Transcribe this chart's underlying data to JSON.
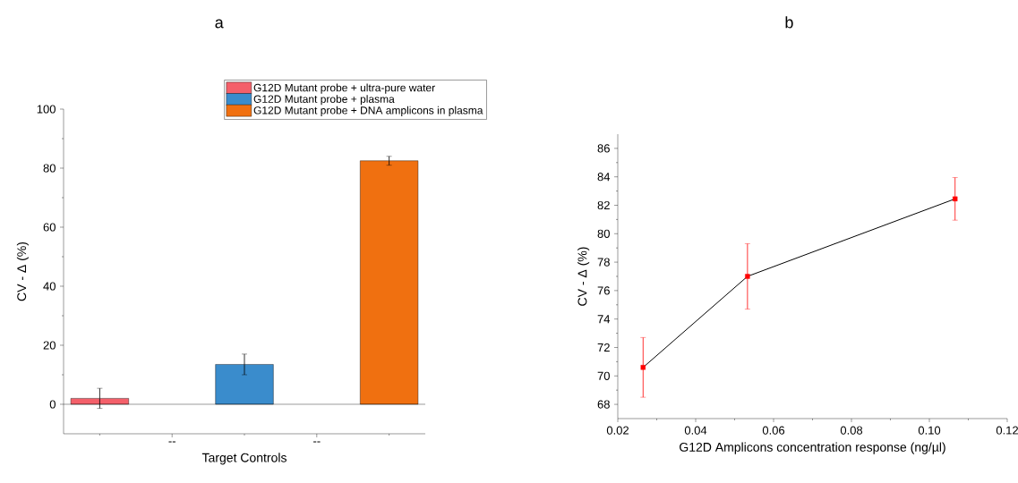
{
  "chart_data": [
    {
      "type": "bar",
      "title": "a",
      "xlabel": "Target Controls",
      "ylabel": "CV - Δ (%)",
      "categories": [
        null,
        "--",
        null,
        "--",
        null
      ],
      "series": [
        {
          "name": "G12D Mutant probe + ultra-pure water",
          "color": "#f4606a",
          "values": [
            2.0,
            null,
            null,
            null,
            null
          ],
          "errors": [
            3.4,
            null,
            null,
            null,
            null
          ]
        },
        {
          "name": "G12D Mutant probe + plasma",
          "color": "#3a8ccc",
          "values": [
            null,
            null,
            13.5,
            null,
            null
          ],
          "errors": [
            null,
            null,
            3.5,
            null,
            null
          ]
        },
        {
          "name": "G12D Mutant probe + DNA amplicons in plasma",
          "color": "#f07010",
          "values": [
            null,
            null,
            null,
            null,
            82.5
          ],
          "errors": [
            null,
            null,
            null,
            null,
            1.5
          ]
        }
      ],
      "ylim": [
        -10,
        100
      ],
      "yticks": [
        0,
        20,
        40,
        60,
        80,
        100
      ],
      "ref_lines": [
        {
          "axis": "y",
          "value": 0
        }
      ],
      "legend": "top right"
    },
    {
      "type": "line",
      "title": "b",
      "xlabel": "G12D  Amplicons concentration response (ng/µl)",
      "ylabel": "CV - Δ (%)",
      "x": [
        0.0265,
        0.0533,
        0.1066
      ],
      "series": [
        {
          "color": "#ff0000",
          "values": [
            70.6,
            77.0,
            82.45
          ],
          "errors": [
            2.1,
            2.3,
            1.5
          ]
        }
      ],
      "marker": "square",
      "xlim": [
        0.02,
        0.12
      ],
      "ylim": [
        67,
        87
      ],
      "xticks": [
        0.02,
        0.04,
        0.06,
        0.08,
        {
          "value": 0.1,
          "label": "0.10"
        },
        0.12
      ],
      "yticks": [
        68,
        70,
        72,
        74,
        76,
        78,
        80,
        82,
        84,
        86
      ]
    }
  ]
}
